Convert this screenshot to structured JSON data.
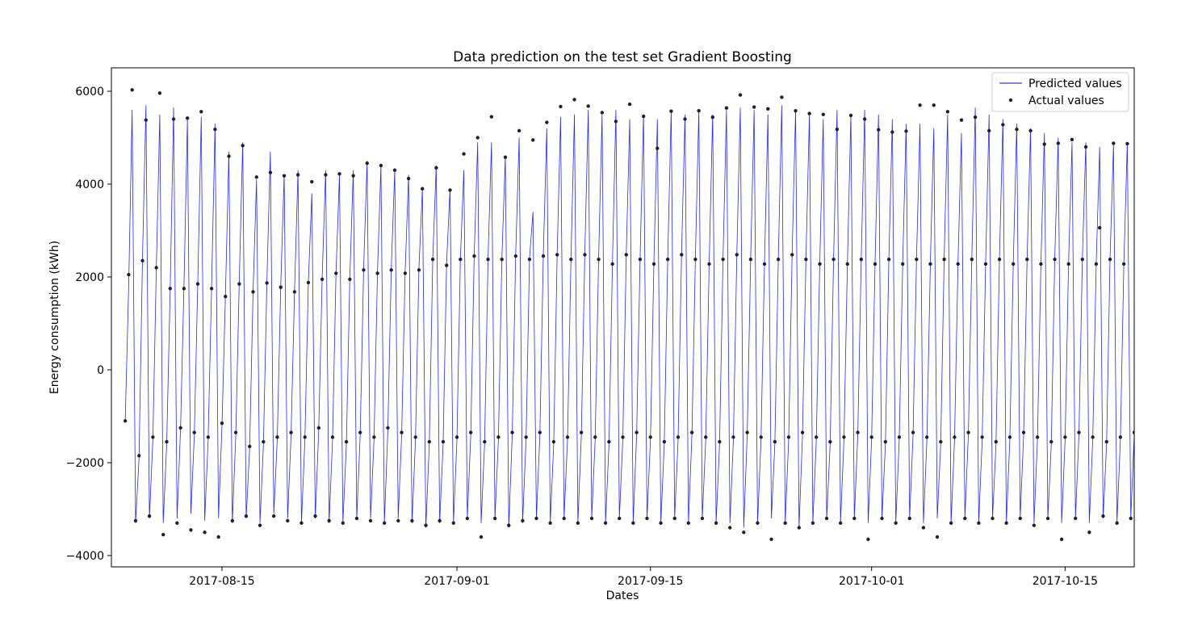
{
  "chart_data": {
    "type": "line",
    "title": "Data prediction on the test set Gradient Boosting",
    "xlabel": "Dates",
    "ylabel": "Energy consumption (kWh)",
    "x_range": [
      "2017-08-07",
      "2017-10-20"
    ],
    "ylim": [
      -4000,
      6000
    ],
    "y_ticks": [
      -4000,
      -2000,
      0,
      2000,
      4000,
      6000
    ],
    "y_tick_labels": [
      "−4000",
      "−2000",
      "0",
      "2000",
      "4000",
      "6000"
    ],
    "x_ticks": [
      "2017-08-15",
      "2017-09-01",
      "2017-09-15",
      "2017-10-01",
      "2017-10-15"
    ],
    "grid": false,
    "legend_position": "top-right",
    "series": [
      {
        "name": "Predicted values",
        "kind": "line",
        "color": "#0000ff",
        "sampling": "every 6 hours, starting 2017-08-08 00:00",
        "values": [
          -1100,
          1800,
          5600,
          -3300,
          -1900,
          2400,
          5700,
          -3200,
          -1500,
          2200,
          5500,
          -3300,
          -1600,
          1700,
          5650,
          -3200,
          -1300,
          1800,
          5400,
          -3100,
          -1400,
          1900,
          5450,
          -3250,
          -1500,
          1800,
          5300,
          -3200,
          -1200,
          1600,
          4700,
          -3300,
          -1400,
          1900,
          4900,
          -3200,
          -1700,
          1700,
          4100,
          -3300,
          -1600,
          1900,
          4700,
          -3100,
          -1500,
          1800,
          4200,
          -3200,
          -1400,
          1700,
          4300,
          -3300,
          -1500,
          1900,
          3800,
          -3200,
          -1300,
          2000,
          4300,
          -3300,
          -1500,
          2100,
          4200,
          -3300,
          -1600,
          2000,
          4300,
          -3200,
          -1400,
          2200,
          4500,
          -3200,
          -1500,
          2100,
          4400,
          -3300,
          -1300,
          2200,
          4300,
          -3200,
          -1400,
          2100,
          4200,
          -3300,
          -1500,
          2200,
          3900,
          -3400,
          -1600,
          2400,
          4400,
          -3300,
          -1600,
          2300,
          3900,
          -3300,
          -1500,
          2400,
          4300,
          -3200,
          -1400,
          2500,
          4900,
          -3300,
          -1600,
          2400,
          4900,
          -3200,
          -1500,
          2400,
          4600,
          -3400,
          -1400,
          2500,
          5000,
          -3300,
          -1500,
          2400,
          3400,
          -3200,
          -1400,
          2500,
          5200,
          -3300,
          -1600,
          2500,
          5450,
          -3200,
          -1500,
          2400,
          5500,
          -3300,
          -1400,
          2500,
          5600,
          -3200,
          -1500,
          2400,
          5500,
          -3300,
          -1600,
          2300,
          5600,
          -3200,
          -1500,
          2500,
          5400,
          -3300,
          -1400,
          2400,
          5500,
          -3200,
          -1500,
          2300,
          5400,
          -3300,
          -1600,
          2400,
          5600,
          -3200,
          -1500,
          2500,
          5500,
          -3300,
          -1400,
          2400,
          5600,
          -3200,
          -1500,
          2300,
          5500,
          -3300,
          -1600,
          2400,
          5600,
          -3300,
          -1500,
          2500,
          5650,
          -3400,
          -1400,
          2400,
          5600,
          -3300,
          -1500,
          2300,
          5500,
          -3200,
          -1600,
          2400,
          5700,
          -3300,
          -1500,
          2500,
          5600,
          -3400,
          -1400,
          2400,
          5500,
          -3300,
          -1500,
          2300,
          5400,
          -3200,
          -1600,
          2400,
          5600,
          -3300,
          -1500,
          2300,
          5500,
          -3200,
          -1400,
          2400,
          5600,
          -3300,
          -1500,
          2300,
          5500,
          -3200,
          -1600,
          2400,
          5400,
          -3300,
          -1500,
          2300,
          5300,
          -3200,
          -1400,
          2400,
          5300,
          -3300,
          -1500,
          2300,
          5200,
          -3200,
          -1600,
          2400,
          5500,
          -3300,
          -1500,
          2300,
          5100,
          -3200,
          -1400,
          2400,
          5650,
          -3300,
          -1500,
          2300,
          5500,
          -3200,
          -1600,
          2400,
          5400,
          -3300,
          -1500,
          2300,
          5300,
          -3200,
          -1400,
          2400,
          5200,
          -3300,
          -1500,
          2300,
          5100,
          -3200,
          -1600,
          2400,
          5000,
          -3300,
          -1500,
          2300,
          4900,
          -3200,
          -1400,
          2400,
          4900,
          -3300,
          -1500,
          2300,
          4800,
          -3200,
          -1600,
          2400,
          4850,
          -3300,
          -1500,
          2300,
          4900,
          -3200,
          -1400,
          2400,
          4800,
          -3300,
          -1500,
          2300,
          4900,
          -3200,
          -1100
        ]
      },
      {
        "name": "Actual values",
        "kind": "scatter",
        "color": "#222222",
        "sampling": "every 6 hours, starting 2017-08-08 00:00",
        "values": [
          -1100,
          2050,
          6030,
          -3250,
          -1850,
          2350,
          5380,
          -3150,
          -1450,
          2200,
          5960,
          -3550,
          -1550,
          1750,
          5400,
          -3300,
          -1250,
          1750,
          5420,
          -3450,
          -1350,
          1850,
          5560,
          -3500,
          -1450,
          1750,
          5180,
          -3600,
          -1150,
          1580,
          4600,
          -3250,
          -1350,
          1850,
          4830,
          -3150,
          -1650,
          1680,
          4150,
          -3350,
          -1550,
          1870,
          4250,
          -3150,
          -1450,
          1780,
          4180,
          -3250,
          -1350,
          1680,
          4200,
          -3300,
          -1450,
          1880,
          4050,
          -3150,
          -1250,
          1950,
          4200,
          -3250,
          -1450,
          2080,
          4220,
          -3300,
          -1550,
          1950,
          4180,
          -3200,
          -1350,
          2150,
          4450,
          -3250,
          -1450,
          2080,
          4400,
          -3300,
          -1250,
          2150,
          4300,
          -3250,
          -1350,
          2080,
          4120,
          -3250,
          -1450,
          2150,
          3900,
          -3350,
          -1550,
          2380,
          4350,
          -3250,
          -1550,
          2250,
          3870,
          -3300,
          -1450,
          2380,
          4650,
          -3200,
          -1350,
          2450,
          5000,
          -3600,
          -1550,
          2380,
          5450,
          -3200,
          -1450,
          2380,
          4580,
          -3350,
          -1350,
          2450,
          5150,
          -3250,
          -1450,
          2380,
          4950,
          -3200,
          -1350,
          2450,
          5330,
          -3300,
          -1550,
          2480,
          5670,
          -3200,
          -1450,
          2380,
          5820,
          -3300,
          -1350,
          2480,
          5680,
          -3200,
          -1450,
          2380,
          5540,
          -3300,
          -1550,
          2280,
          5350,
          -3200,
          -1450,
          2480,
          5720,
          -3300,
          -1350,
          2380,
          5460,
          -3200,
          -1450,
          2280,
          4770,
          -3300,
          -1550,
          2380,
          5570,
          -3200,
          -1450,
          2480,
          5400,
          -3300,
          -1350,
          2380,
          5580,
          -3200,
          -1450,
          2280,
          5440,
          -3300,
          -1550,
          2380,
          5640,
          -3400,
          -1450,
          2480,
          5920,
          -3500,
          -1350,
          2380,
          5660,
          -3300,
          -1450,
          2280,
          5620,
          -3650,
          -1550,
          2380,
          5870,
          -3300,
          -1450,
          2480,
          5580,
          -3400,
          -1350,
          2380,
          5520,
          -3300,
          -1450,
          2280,
          5500,
          -3200,
          -1550,
          2380,
          5180,
          -3300,
          -1450,
          2280,
          5480,
          -3200,
          -1350,
          2380,
          5400,
          -3650,
          -1450,
          2280,
          5170,
          -3200,
          -1550,
          2380,
          5120,
          -3300,
          -1450,
          2280,
          5140,
          -3200,
          -1350,
          2380,
          5700,
          -3400,
          -1450,
          2280,
          5700,
          -3600,
          -1550,
          2380,
          5560,
          -3300,
          -1450,
          2280,
          5380,
          -3200,
          -1350,
          2380,
          5440,
          -3300,
          -1450,
          2280,
          5150,
          -3200,
          -1550,
          2380,
          5280,
          -3300,
          -1450,
          2280,
          5180,
          -3200,
          -1350,
          2380,
          5150,
          -3350,
          -1450,
          2280,
          4860,
          -3200,
          -1550,
          2380,
          4880,
          -3650,
          -1450,
          2280,
          4960,
          -3200,
          -1350,
          2380,
          4800,
          -3500,
          -1450,
          2280,
          3060,
          -3150,
          -1550,
          2380,
          4880,
          -3300,
          -1450,
          2280,
          4870,
          -3200,
          -1350,
          2380,
          4860,
          -3300,
          -1450,
          2280,
          4880,
          -3200,
          -2700
        ]
      }
    ]
  }
}
